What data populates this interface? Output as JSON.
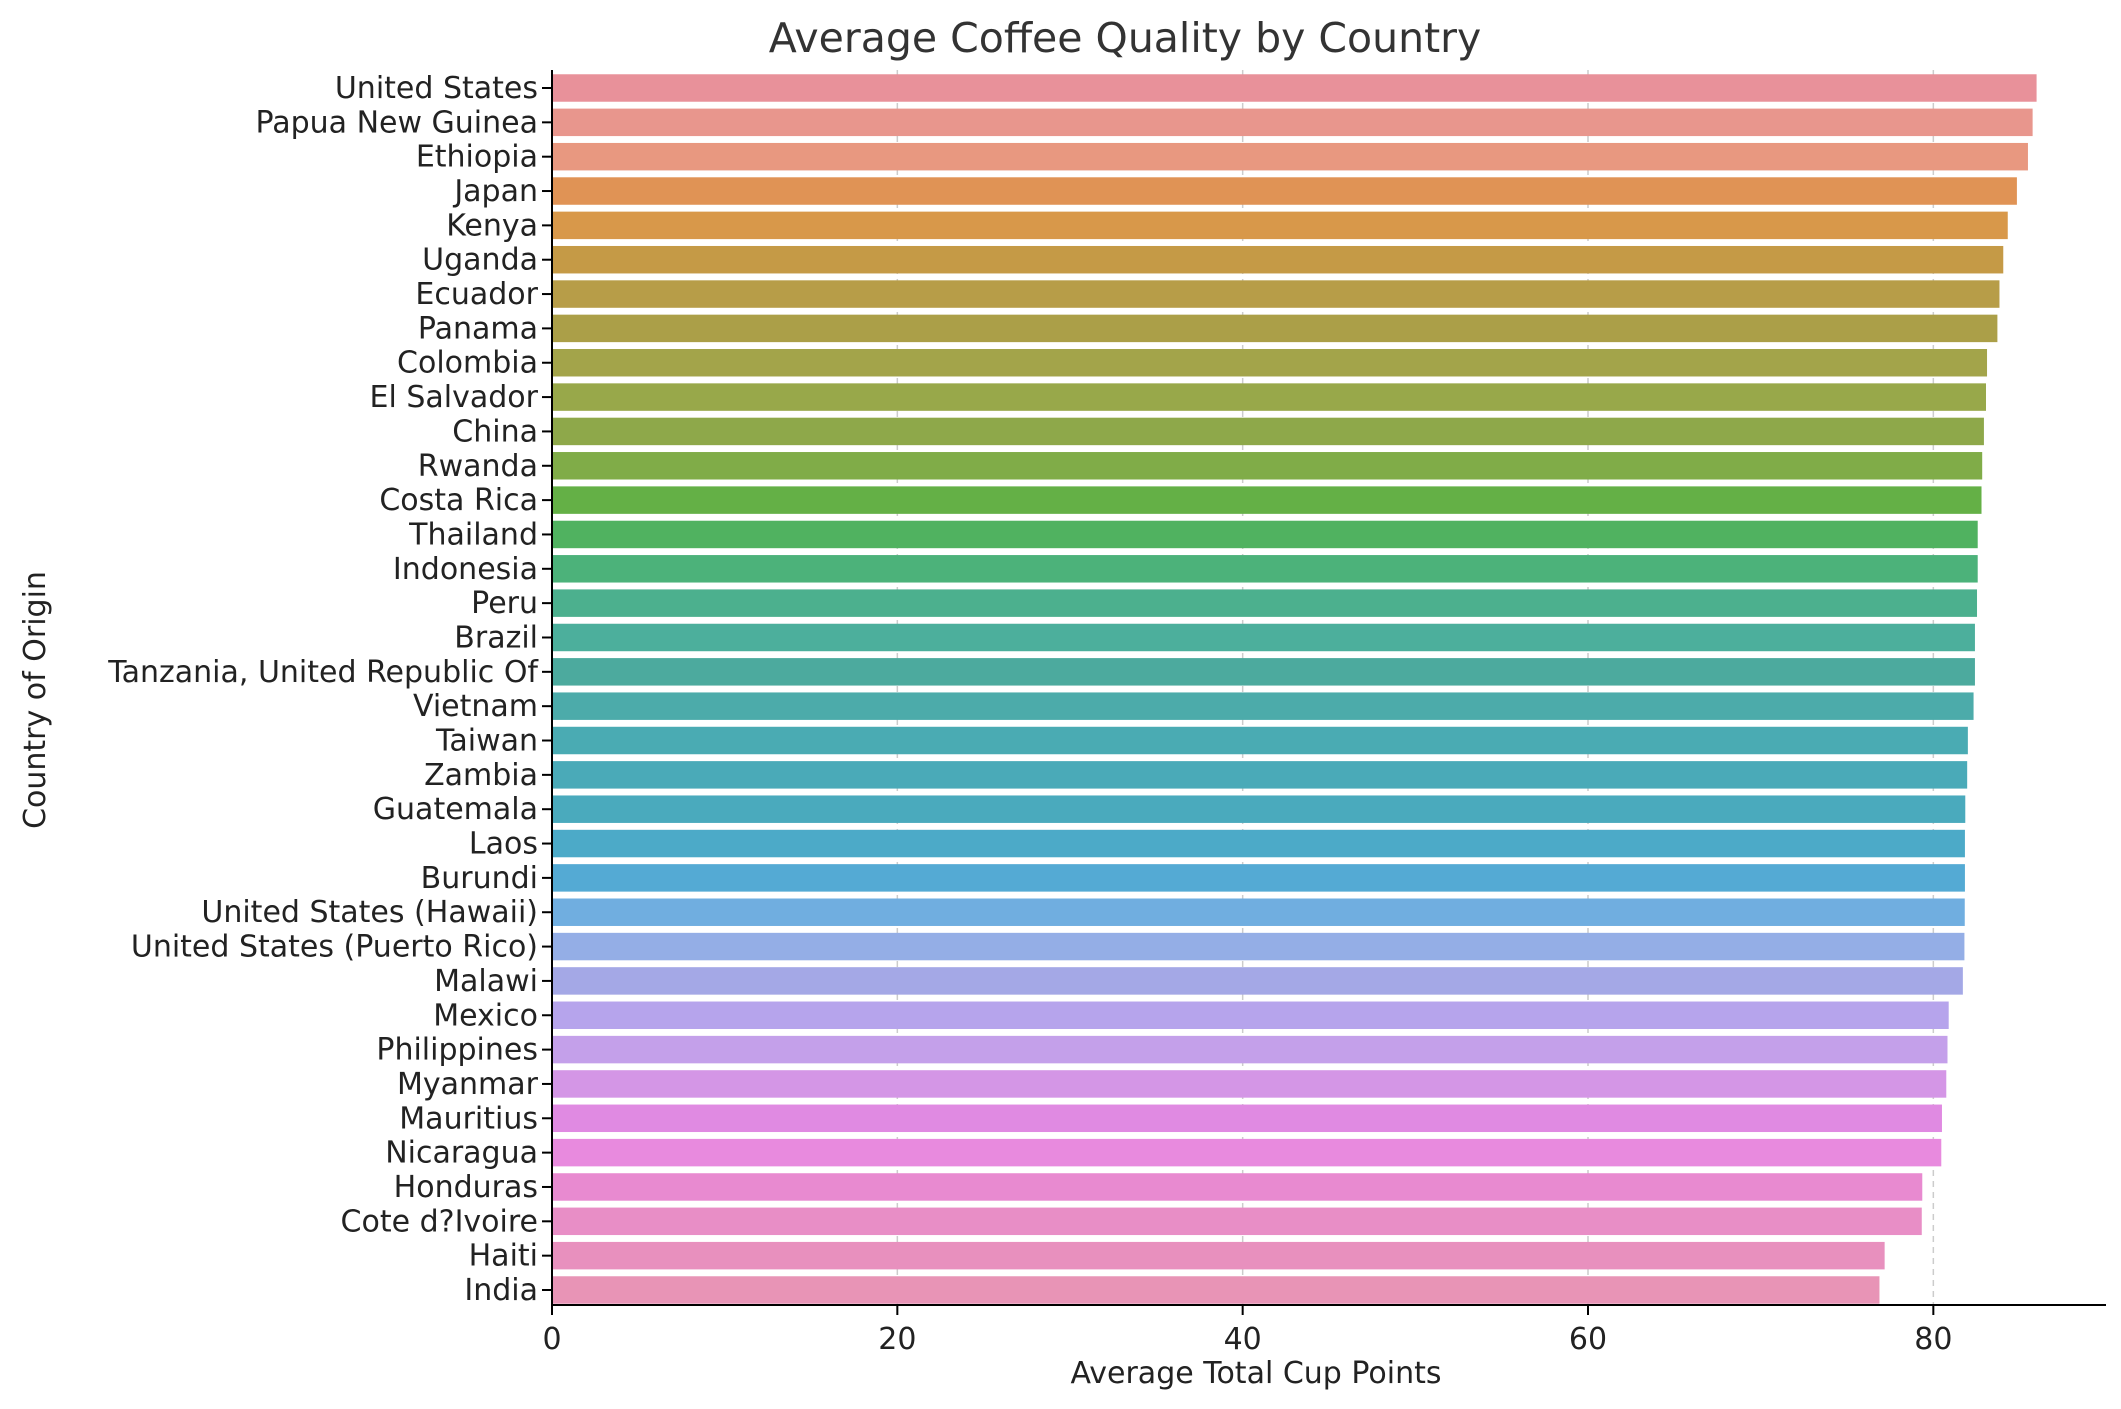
{
  "chart_data": {
    "type": "bar",
    "orientation": "horizontal",
    "title": "Average Coffee Quality by Country",
    "xlabel": "Average Total Cup Points",
    "ylabel": "Country of Origin",
    "xlim": [
      0,
      90
    ],
    "xticks": [
      0,
      20,
      40,
      60,
      80
    ],
    "grid": "x-dashed",
    "categories": [
      "United States",
      "Papua New Guinea",
      "Ethiopia",
      "Japan",
      "Kenya",
      "Uganda",
      "Ecuador",
      "Panama",
      "Colombia",
      "El Salvador",
      "China",
      "Rwanda",
      "Costa Rica",
      "Thailand",
      "Indonesia",
      "Peru",
      "Brazil",
      "Tanzania, United Republic Of",
      "Vietnam",
      "Taiwan",
      "Zambia",
      "Guatemala",
      "Laos",
      "Burundi",
      "United States (Hawaii)",
      "United States (Puerto Rico)",
      "Malawi",
      "Mexico",
      "Philippines",
      "Myanmar",
      "Mauritius",
      "Nicaragua",
      "Honduras",
      "Cote d?Ivoire",
      "Haiti",
      "India"
    ],
    "values": [
      85.98,
      85.75,
      85.48,
      84.84,
      84.31,
      84.05,
      83.83,
      83.71,
      83.11,
      83.05,
      82.93,
      82.83,
      82.79,
      82.57,
      82.57,
      82.53,
      82.41,
      82.41,
      82.33,
      82.0,
      81.96,
      81.85,
      81.83,
      81.83,
      81.82,
      81.8,
      81.71,
      80.89,
      80.82,
      80.75,
      80.5,
      80.46,
      79.36,
      79.33,
      77.18,
      76.88
    ],
    "colors": [
      "#e8919a",
      "#e8968d",
      "#e89880",
      "#e09355",
      "#d8984a",
      "#c59a46",
      "#b79d48",
      "#ab9f48",
      "#a3a44a",
      "#98a84a",
      "#8ea84a",
      "#80ac48",
      "#64b046",
      "#50b260",
      "#4cb27a",
      "#4cb08e",
      "#4caf9c",
      "#4caa9e",
      "#4cabaa",
      "#4aabb3",
      "#4aaab8",
      "#4aaabd",
      "#4caac8",
      "#54aad4",
      "#70aee0",
      "#94aee6",
      "#a4a8e6",
      "#b6a4ec",
      "#c4a0ea",
      "#d496e6",
      "#e08ae2",
      "#e88ade",
      "#e88ad0",
      "#e88ec6",
      "#e890be",
      "#e894b6"
    ]
  }
}
